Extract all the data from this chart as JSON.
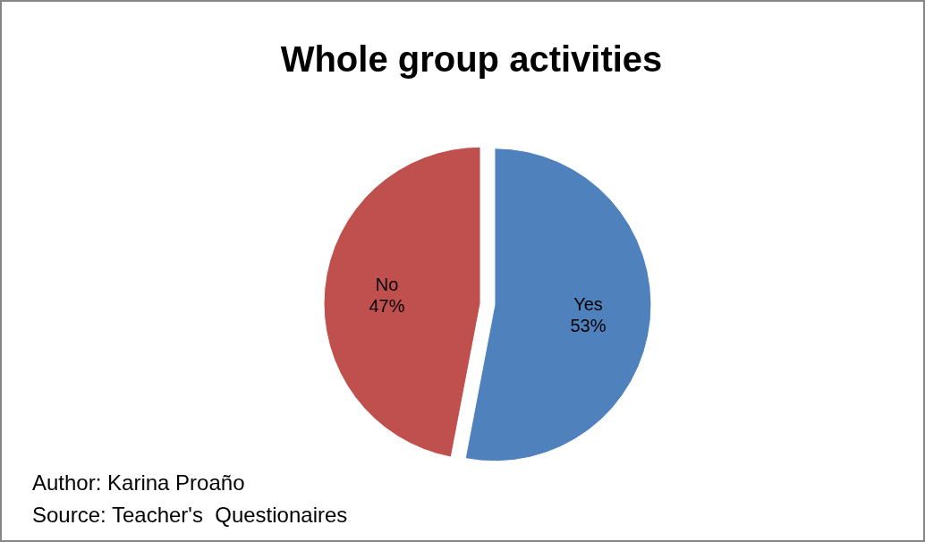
{
  "chart_data": {
    "type": "pie",
    "title": "Whole group activities",
    "categories": [
      "Yes",
      "No"
    ],
    "values": [
      53,
      47
    ],
    "colors": [
      "#4f81bd",
      "#c0504d"
    ],
    "value_labels": [
      "53%",
      "47%"
    ],
    "annotations": [
      "Author: Karina Proaño",
      "Source: Teacher's  Questionaires"
    ]
  }
}
